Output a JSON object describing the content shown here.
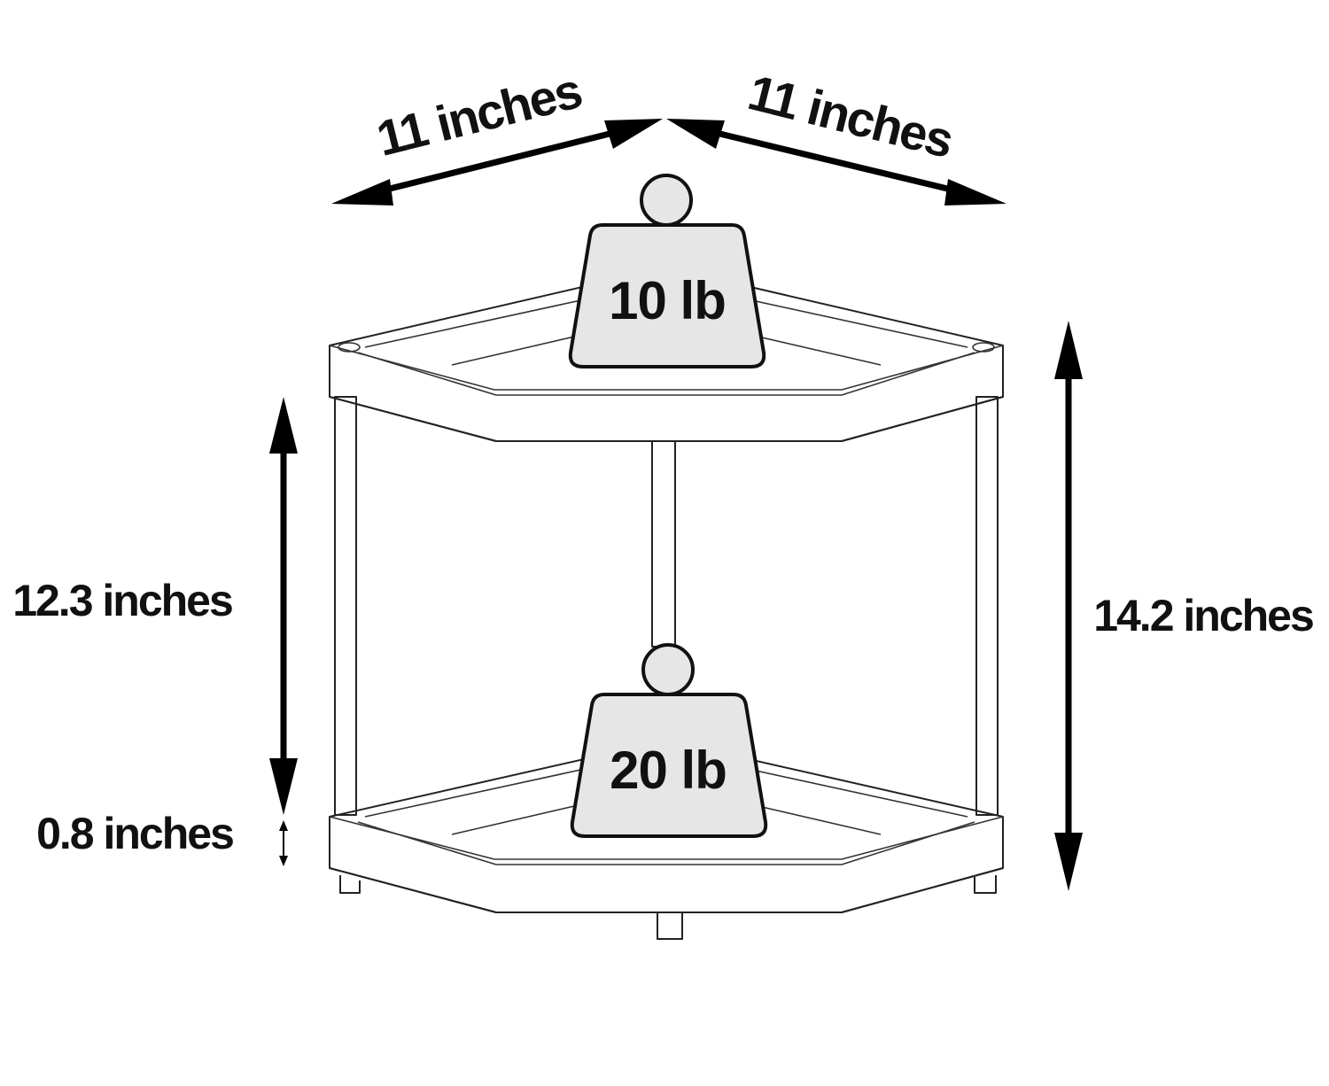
{
  "dimensions": {
    "depth_left": "11 inches",
    "depth_right": "11 inches",
    "shelf_gap": "12.3 inches",
    "foot_height": "0.8 inches",
    "total_height": "14.2 inches"
  },
  "weights": {
    "top": "10 lb",
    "bottom": "20 lb"
  },
  "colors": {
    "outline": "#222222",
    "weight_fill": "#e6e6e6",
    "arrow": "#000000"
  }
}
